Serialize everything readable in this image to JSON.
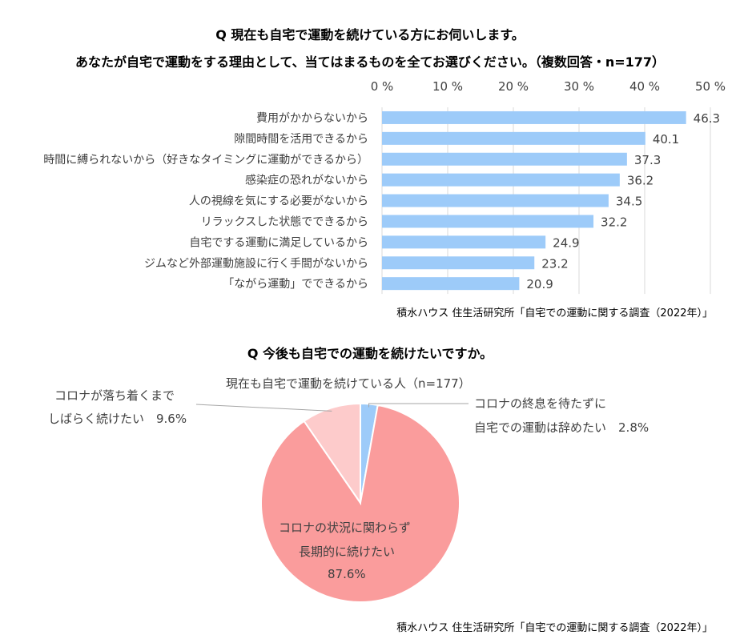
{
  "bar_chart": {
    "title_line1": "Q 現在も自宅で運動を続けている方にお伺いします。",
    "title_line2": "あなたが自宅で運動をする理由として、当てはまるものを全てお選びください。（複数回答・n=177）",
    "source": "積水ハウス 住生活研究所「自宅での運動に関する調査（2022年）」"
  },
  "pie_chart": {
    "title": "Q 今後も自宅での運動を続けたいですか。",
    "subtitle": "現在も自宅で運動を続けている人（n=177）",
    "source": "積水ハウス 住生活研究所「自宅での運動に関する調査（2022年）」",
    "labels": {
      "main_line1": "コロナの状況に関わらず",
      "main_line2": "長期的に続けたい",
      "main_pct": "87.6%",
      "left_line1": "コロナが落ち着くまで",
      "left_line2": "しばらく続けたい　9.6%",
      "right_line1": "コロナの終息を待たずに",
      "right_line2": "自宅での運動は辞めたい　2.8%"
    }
  },
  "chart_data": [
    {
      "type": "bar",
      "orientation": "horizontal",
      "categories": [
        "費用がかからないから",
        "隙間時間を活用できるから",
        "時間に縛られないから（好きなタイミングに運動ができるから）",
        "感染症の恐れがないから",
        "人の視線を気にする必要がないから",
        "リラックスした状態でできるから",
        "自宅でする運動に満足しているから",
        "ジムなど外部運動施設に行く手間がないから",
        "「ながら運動」でできるから"
      ],
      "values": [
        46.3,
        40.1,
        37.3,
        36.2,
        34.5,
        32.2,
        24.9,
        23.2,
        20.9
      ],
      "value_labels": [
        "46.3",
        "40.1",
        "37.3",
        "36.2",
        "34.5",
        "32.2",
        "24.9",
        "23.2",
        "20.9"
      ],
      "xlim": [
        0,
        50
      ],
      "ticks": [
        0,
        10,
        20,
        30,
        40,
        50
      ],
      "tick_labels": [
        "0 %",
        "10 %",
        "20 %",
        "30 %",
        "40 %",
        "50 %"
      ],
      "axis_position": "top",
      "grid": true,
      "bar_color": "#9DCBF9"
    },
    {
      "type": "pie",
      "categories": [
        "コロナの状況に関わらず長期的に続けたい",
        "コロナが落ち着くまでしばらく続けたい",
        "コロナの終息を待たずに自宅での運動は辞めたい"
      ],
      "values": [
        87.6,
        9.6,
        2.8
      ],
      "colors": [
        "#FA9C9C",
        "#FDCBCB",
        "#9DCBF9"
      ]
    }
  ]
}
